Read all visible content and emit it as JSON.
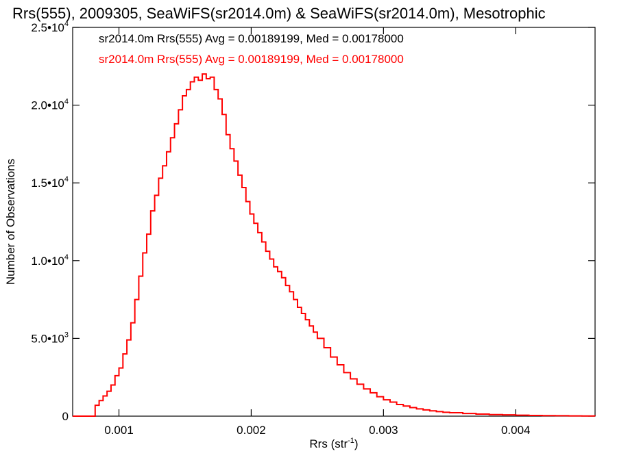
{
  "chart_data": {
    "type": "histogram",
    "title": "Rrs(555), 2009305, SeaWiFS(sr2014.0m) & SeaWiFS(sr2014.0m), Mesotrophic",
    "xlabel_base": "Rrs (str",
    "xlabel_sup": "-1",
    "xlabel_tail": ")",
    "ylabel": "Number of Observations",
    "xlim": [
      0.00065,
      0.0046
    ],
    "ylim": [
      0,
      25000
    ],
    "x_ticks": [
      {
        "value": 0.001,
        "label": "0.001"
      },
      {
        "value": 0.002,
        "label": "0.002"
      },
      {
        "value": 0.003,
        "label": "0.003"
      },
      {
        "value": 0.004,
        "label": "0.004"
      }
    ],
    "y_ticks": [
      {
        "value": 0,
        "base": "0",
        "exp": ""
      },
      {
        "value": 5000,
        "base": "5.0•10",
        "exp": "3"
      },
      {
        "value": 10000,
        "base": "1.0•10",
        "exp": "4"
      },
      {
        "value": 15000,
        "base": "1.5•10",
        "exp": "4"
      },
      {
        "value": 20000,
        "base": "2.0•10",
        "exp": "4"
      },
      {
        "value": 25000,
        "base": "2.5•10",
        "exp": "4"
      }
    ],
    "legend": [
      {
        "text": "sr2014.0m Rrs(555) Avg = 0.00189199, Med = 0.00178000",
        "color": "#000000"
      },
      {
        "text": "sr2014.0m Rrs(555) Avg = 0.00189199, Med = 0.00178000",
        "color": "#ff0000"
      }
    ],
    "series": [
      {
        "color": "#ff0000",
        "points": [
          [
            0.00065,
            0
          ],
          [
            0.00075,
            0
          ],
          [
            0.0008,
            0
          ],
          [
            0.00082,
            700
          ],
          [
            0.00085,
            1000
          ],
          [
            0.00088,
            1300
          ],
          [
            0.00091,
            1600
          ],
          [
            0.00094,
            2000
          ],
          [
            0.00097,
            2600
          ],
          [
            0.001,
            3100
          ],
          [
            0.00103,
            4000
          ],
          [
            0.00106,
            4900
          ],
          [
            0.00109,
            6000
          ],
          [
            0.00112,
            7500
          ],
          [
            0.00115,
            9000
          ],
          [
            0.00118,
            10500
          ],
          [
            0.00121,
            11700
          ],
          [
            0.00124,
            13200
          ],
          [
            0.00127,
            14200
          ],
          [
            0.0013,
            15300
          ],
          [
            0.00133,
            16100
          ],
          [
            0.00136,
            17000
          ],
          [
            0.00139,
            17900
          ],
          [
            0.00142,
            18800
          ],
          [
            0.00145,
            19700
          ],
          [
            0.00148,
            20600
          ],
          [
            0.00151,
            21000
          ],
          [
            0.00154,
            21500
          ],
          [
            0.00157,
            21800
          ],
          [
            0.0016,
            21600
          ],
          [
            0.00163,
            22000
          ],
          [
            0.00166,
            21700
          ],
          [
            0.00169,
            21800
          ],
          [
            0.00172,
            21000
          ],
          [
            0.00175,
            20400
          ],
          [
            0.00178,
            19400
          ],
          [
            0.00181,
            18100
          ],
          [
            0.00184,
            17200
          ],
          [
            0.00187,
            16400
          ],
          [
            0.0019,
            15500
          ],
          [
            0.00193,
            14700
          ],
          [
            0.00196,
            13800
          ],
          [
            0.00199,
            13000
          ],
          [
            0.00202,
            12400
          ],
          [
            0.00205,
            11800
          ],
          [
            0.00208,
            11200
          ],
          [
            0.00211,
            10600
          ],
          [
            0.00214,
            10100
          ],
          [
            0.00217,
            9600
          ],
          [
            0.0022,
            9300
          ],
          [
            0.00223,
            8900
          ],
          [
            0.00226,
            8400
          ],
          [
            0.00229,
            8000
          ],
          [
            0.00232,
            7500
          ],
          [
            0.00235,
            7000
          ],
          [
            0.00238,
            6600
          ],
          [
            0.00241,
            6200
          ],
          [
            0.00244,
            5800
          ],
          [
            0.00247,
            5400
          ],
          [
            0.0025,
            5000
          ],
          [
            0.00255,
            4400
          ],
          [
            0.0026,
            3800
          ],
          [
            0.00265,
            3300
          ],
          [
            0.0027,
            2800
          ],
          [
            0.00275,
            2400
          ],
          [
            0.0028,
            2050
          ],
          [
            0.00285,
            1750
          ],
          [
            0.0029,
            1500
          ],
          [
            0.00295,
            1250
          ],
          [
            0.003,
            1050
          ],
          [
            0.00305,
            900
          ],
          [
            0.0031,
            750
          ],
          [
            0.00315,
            650
          ],
          [
            0.0032,
            550
          ],
          [
            0.00325,
            470
          ],
          [
            0.0033,
            400
          ],
          [
            0.00335,
            340
          ],
          [
            0.0034,
            290
          ],
          [
            0.00345,
            250
          ],
          [
            0.0035,
            220
          ],
          [
            0.0036,
            170
          ],
          [
            0.0037,
            130
          ],
          [
            0.0038,
            100
          ],
          [
            0.0039,
            80
          ],
          [
            0.004,
            60
          ],
          [
            0.0041,
            45
          ],
          [
            0.0042,
            35
          ],
          [
            0.0043,
            25
          ],
          [
            0.0044,
            18
          ],
          [
            0.0045,
            12
          ],
          [
            0.0046,
            8
          ]
        ]
      }
    ]
  }
}
